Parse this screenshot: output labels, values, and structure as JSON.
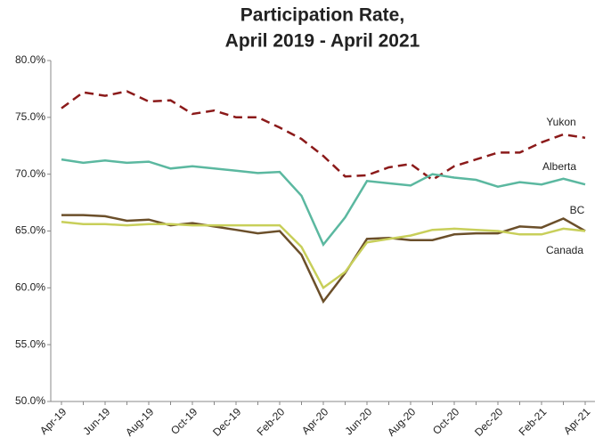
{
  "chart_data": {
    "type": "line",
    "title": [
      "Participation Rate,",
      "April 2019 - April 2021"
    ],
    "categories": [
      "Apr-19",
      null,
      "Jun-19",
      null,
      "Aug-19",
      null,
      "Oct-19",
      null,
      "Dec-19",
      null,
      "Feb-20",
      null,
      "Apr-20",
      null,
      "Jun-20",
      null,
      "Aug-20",
      null,
      "Oct-20",
      null,
      "Dec-20",
      null,
      "Feb-21",
      null,
      "Apr-21"
    ],
    "series": [
      {
        "name": "Yukon",
        "color": "#8b1a1a",
        "line_style": "dashed",
        "values": [
          75.8,
          77.2,
          76.9,
          77.3,
          76.4,
          76.5,
          75.3,
          75.6,
          75.0,
          75.0,
          74.1,
          73.1,
          71.6,
          69.8,
          69.9,
          70.6,
          70.9,
          69.5,
          70.7,
          71.3,
          71.9,
          71.9,
          72.8,
          73.5,
          73.2
        ]
      },
      {
        "name": "Alberta",
        "color": "#5bb8a0",
        "line_style": "solid",
        "values": [
          71.3,
          71.0,
          71.2,
          71.0,
          71.1,
          70.5,
          70.7,
          70.5,
          70.3,
          70.1,
          70.2,
          68.1,
          63.8,
          66.2,
          69.4,
          69.2,
          69.0,
          70.0,
          69.7,
          69.5,
          68.9,
          69.3,
          69.1,
          69.6,
          69.1
        ]
      },
      {
        "name": "BC",
        "color": "#6b4f2a",
        "line_style": "solid",
        "values": [
          66.4,
          66.4,
          66.3,
          65.9,
          66.0,
          65.5,
          65.7,
          65.4,
          65.1,
          64.8,
          65.0,
          62.9,
          58.8,
          61.3,
          64.3,
          64.4,
          64.2,
          64.2,
          64.7,
          64.8,
          64.8,
          65.4,
          65.3,
          66.1,
          65.0
        ]
      },
      {
        "name": "Canada",
        "color": "#c8cf5a",
        "line_style": "solid",
        "values": [
          65.8,
          65.6,
          65.6,
          65.5,
          65.6,
          65.6,
          65.5,
          65.5,
          65.5,
          65.5,
          65.5,
          63.6,
          60.0,
          61.4,
          64.0,
          64.3,
          64.6,
          65.1,
          65.2,
          65.1,
          65.0,
          64.7,
          64.7,
          65.2,
          65.0
        ]
      }
    ],
    "ylim": [
      50,
      80
    ],
    "yticks": [
      {
        "value": 50,
        "label": "50.0%"
      },
      {
        "value": 55,
        "label": "55.0%"
      },
      {
        "value": 60,
        "label": "60.0%"
      },
      {
        "value": 65,
        "label": "65.0%"
      },
      {
        "value": 70,
        "label": "70.0%"
      },
      {
        "value": 75,
        "label": "75.0%"
      },
      {
        "value": 80,
        "label": "80.0%"
      }
    ],
    "grid": false
  }
}
